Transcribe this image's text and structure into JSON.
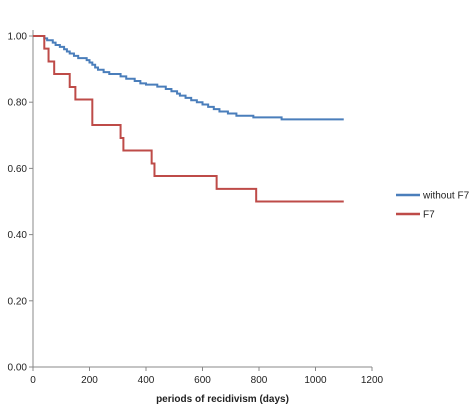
{
  "chart_data": {
    "type": "line",
    "step": true,
    "title": "",
    "xlabel": "periods of recidivism (days)",
    "ylabel": "",
    "xlim": [
      0,
      1200
    ],
    "ylim": [
      0.0,
      1.0
    ],
    "x_ticks": [
      0,
      200,
      400,
      600,
      800,
      1000,
      1200
    ],
    "y_ticks": [
      0.0,
      0.2,
      0.4,
      0.6,
      0.8,
      1.0
    ],
    "x_tick_labels": [
      "0",
      "200",
      "400",
      "600",
      "800",
      "1000",
      "1200"
    ],
    "y_tick_labels": [
      "0.00",
      "0.20",
      "0.40",
      "0.60",
      "0.80",
      "1.00"
    ],
    "grid": false,
    "legend_position": "right",
    "series": [
      {
        "name": "without F7",
        "color": "#4a7ebb",
        "points": [
          [
            0,
            1.0
          ],
          [
            40,
            1.0
          ],
          [
            40,
            0.993
          ],
          [
            50,
            0.987
          ],
          [
            70,
            0.98
          ],
          [
            80,
            0.973
          ],
          [
            95,
            0.967
          ],
          [
            110,
            0.96
          ],
          [
            120,
            0.953
          ],
          [
            130,
            0.947
          ],
          [
            145,
            0.94
          ],
          [
            160,
            0.933
          ],
          [
            190,
            0.927
          ],
          [
            200,
            0.92
          ],
          [
            210,
            0.913
          ],
          [
            220,
            0.905
          ],
          [
            230,
            0.898
          ],
          [
            250,
            0.891
          ],
          [
            270,
            0.885
          ],
          [
            310,
            0.878
          ],
          [
            330,
            0.871
          ],
          [
            360,
            0.864
          ],
          [
            380,
            0.857
          ],
          [
            400,
            0.853
          ],
          [
            440,
            0.847
          ],
          [
            470,
            0.84
          ],
          [
            490,
            0.833
          ],
          [
            510,
            0.826
          ],
          [
            520,
            0.82
          ],
          [
            540,
            0.813
          ],
          [
            560,
            0.806
          ],
          [
            580,
            0.8
          ],
          [
            600,
            0.793
          ],
          [
            620,
            0.786
          ],
          [
            640,
            0.779
          ],
          [
            660,
            0.772
          ],
          [
            690,
            0.766
          ],
          [
            720,
            0.759
          ],
          [
            780,
            0.754
          ],
          [
            880,
            0.748
          ],
          [
            1100,
            0.748
          ]
        ]
      },
      {
        "name": "F7",
        "color": "#be4b48",
        "points": [
          [
            0,
            1.0
          ],
          [
            40,
            1.0
          ],
          [
            40,
            0.962
          ],
          [
            55,
            0.962
          ],
          [
            55,
            0.923
          ],
          [
            75,
            0.923
          ],
          [
            75,
            0.885
          ],
          [
            130,
            0.885
          ],
          [
            130,
            0.846
          ],
          [
            150,
            0.846
          ],
          [
            150,
            0.808
          ],
          [
            210,
            0.808
          ],
          [
            210,
            0.731
          ],
          [
            310,
            0.731
          ],
          [
            310,
            0.692
          ],
          [
            320,
            0.692
          ],
          [
            320,
            0.654
          ],
          [
            420,
            0.654
          ],
          [
            420,
            0.615
          ],
          [
            430,
            0.615
          ],
          [
            430,
            0.577
          ],
          [
            650,
            0.577
          ],
          [
            650,
            0.538
          ],
          [
            790,
            0.538
          ],
          [
            790,
            0.5
          ],
          [
            1100,
            0.5
          ]
        ]
      }
    ]
  }
}
